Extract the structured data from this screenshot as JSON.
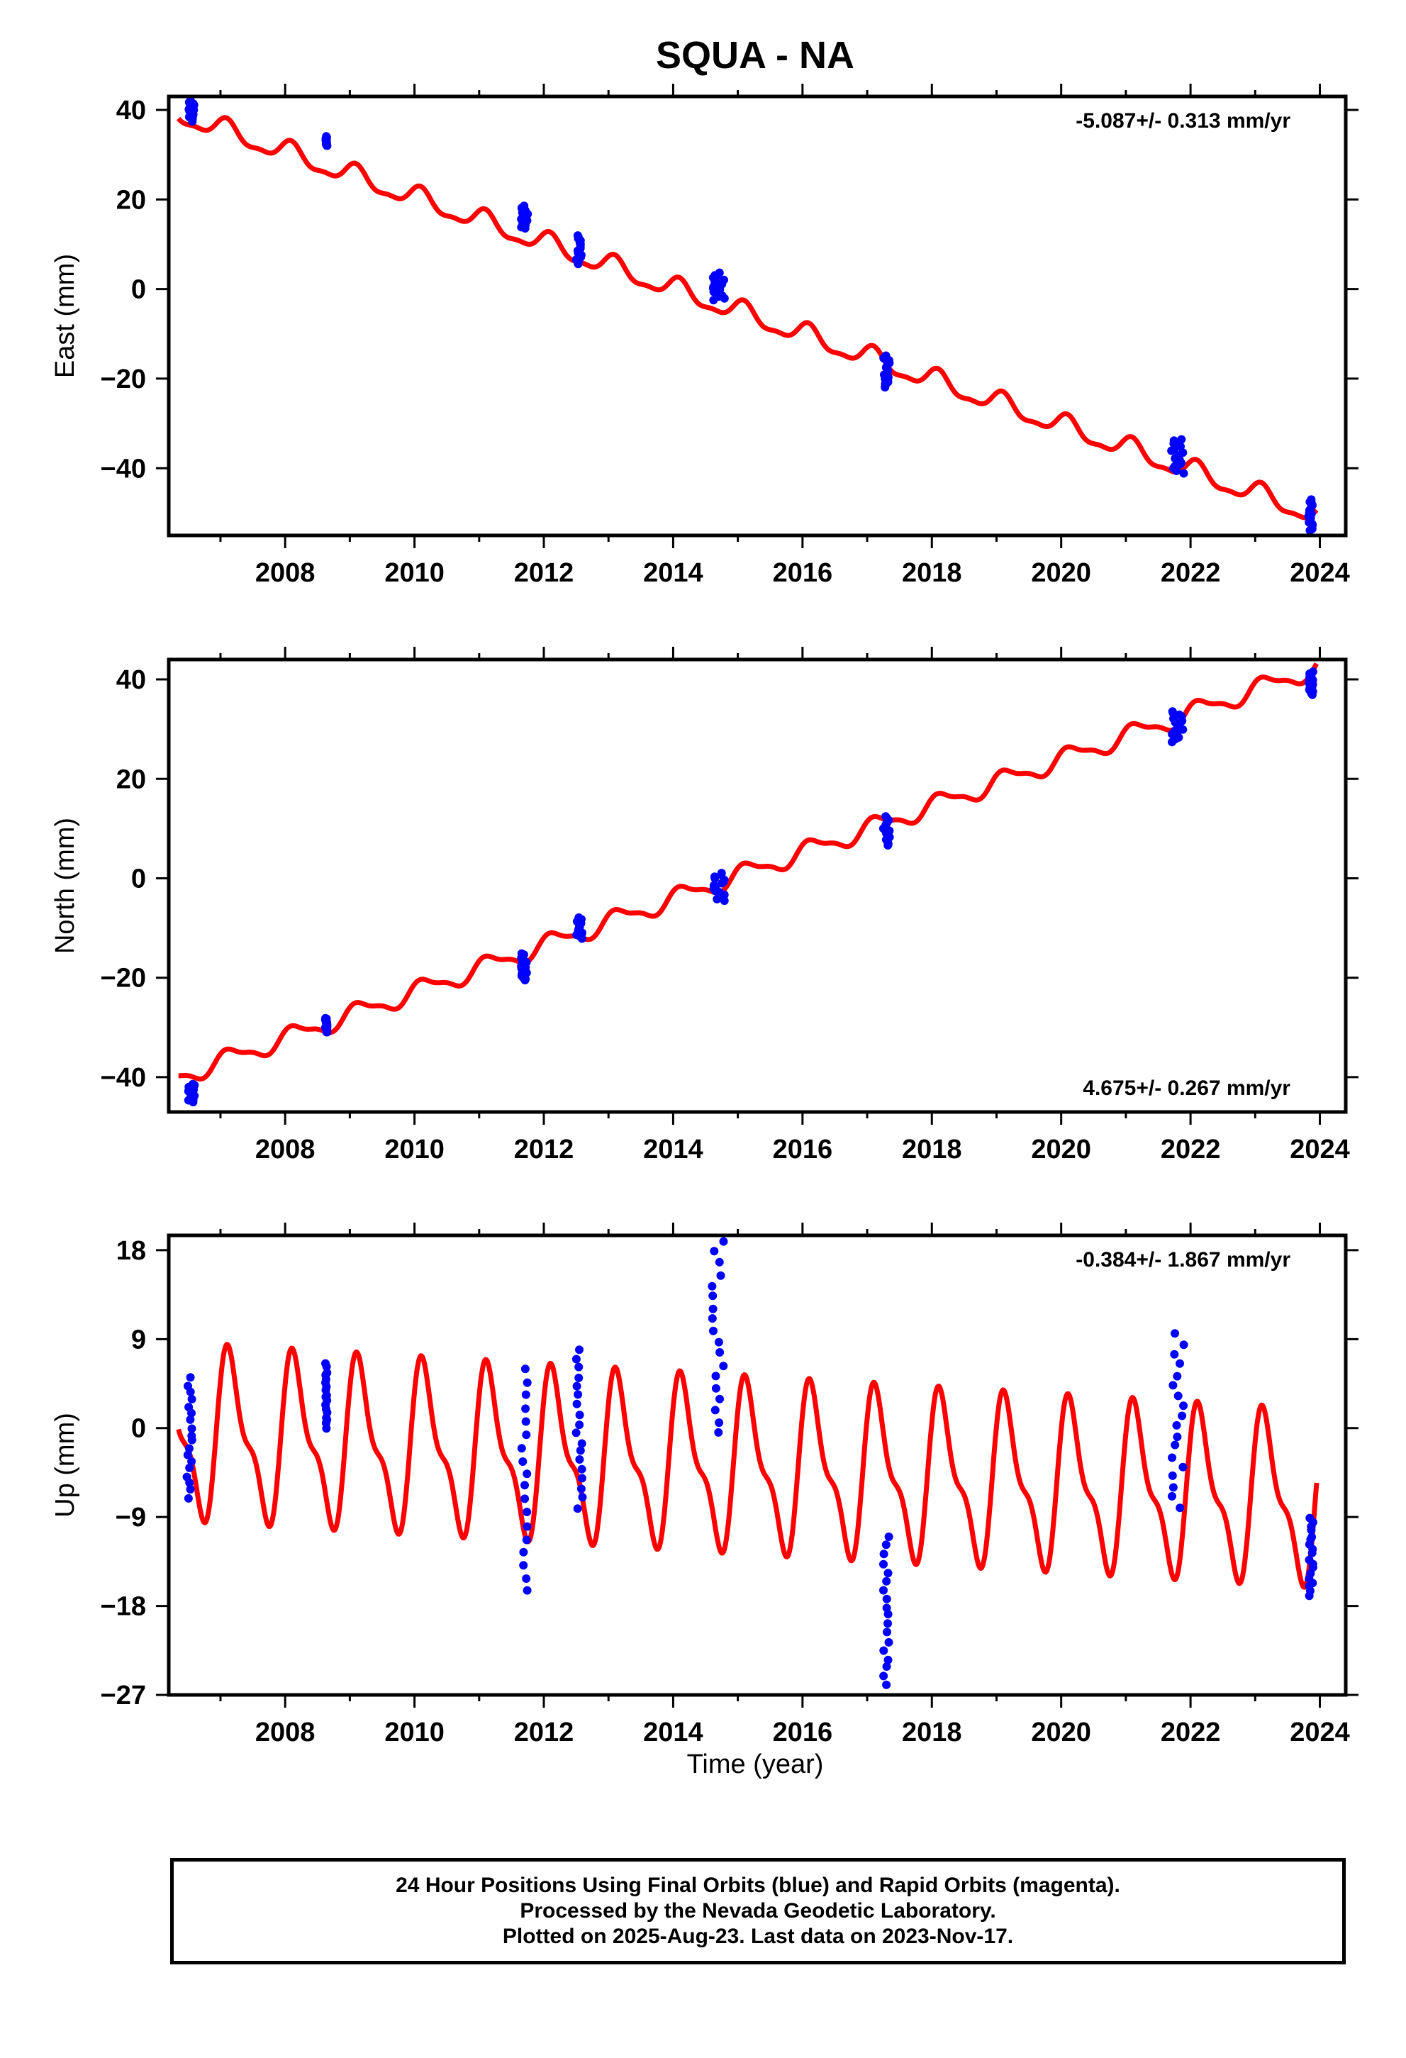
{
  "chart_data": {
    "type": "scatter",
    "title": "SQUA - NA",
    "xlabel": "Time (year)",
    "xlim": [
      2006.2,
      2024.4
    ],
    "x_ticks": [
      2008,
      2010,
      2012,
      2014,
      2016,
      2018,
      2020,
      2022,
      2024
    ],
    "x_tick_labels": [
      "2008",
      "2010",
      "2012",
      "2014",
      "2016",
      "2018",
      "2020",
      "2022",
      "2024"
    ],
    "colors": {
      "data": "#0000ff",
      "model": "#ff0000",
      "axes": "#000000"
    },
    "panels": [
      {
        "component": "East",
        "ylabel": "East (mm)",
        "ylim": [
          -55,
          43
        ],
        "y_ticks": [
          -40,
          -20,
          0,
          20,
          40
        ],
        "y_tick_labels": [
          "−40",
          "−20",
          "0",
          "20",
          "40"
        ],
        "rate_text": "-5.087+/- 0.313 mm/yr",
        "rate_position": "top-right",
        "model": {
          "intercept_2015": -5.0,
          "rate": -5.087,
          "annual_amplitude": 2.2,
          "annual_phase": 1.0,
          "semiannual_amplitude": 0.8,
          "semiannual_phase": 0.4
        },
        "data_clusters": [
          {
            "start": 2006.5,
            "end": 2006.6,
            "y_min": 37.5,
            "y_max": 42
          },
          {
            "start": 2008.62,
            "end": 2008.65,
            "y_min": 32,
            "y_max": 34
          },
          {
            "start": 2011.65,
            "end": 2011.75,
            "y_min": 13.5,
            "y_max": 18.5
          },
          {
            "start": 2012.5,
            "end": 2012.6,
            "y_min": 5.5,
            "y_max": 12
          },
          {
            "start": 2014.6,
            "end": 2014.8,
            "y_min": -2.5,
            "y_max": 3.5
          },
          {
            "start": 2017.25,
            "end": 2017.35,
            "y_min": -22,
            "y_max": -15
          },
          {
            "start": 2021.7,
            "end": 2021.9,
            "y_min": -41,
            "y_max": -33.5
          },
          {
            "start": 2023.82,
            "end": 2023.9,
            "y_min": -54,
            "y_max": -47
          }
        ]
      },
      {
        "component": "North",
        "ylabel": "North (mm)",
        "ylim": [
          -47,
          44
        ],
        "y_ticks": [
          -40,
          -20,
          0,
          20,
          40
        ],
        "y_tick_labels": [
          "−40",
          "−20",
          "0",
          "20",
          "40"
        ],
        "rate_text": "4.675+/- 0.267 mm/yr",
        "rate_position": "bottom-right",
        "model": {
          "intercept_2015": 0.5,
          "rate": 4.675,
          "annual_amplitude": 1.8,
          "annual_phase": 0.6,
          "semiannual_amplitude": 0.6,
          "semiannual_phase": 1.2
        },
        "data_clusters": [
          {
            "start": 2006.5,
            "end": 2006.6,
            "y_min": -45,
            "y_max": -41.5
          },
          {
            "start": 2008.62,
            "end": 2008.65,
            "y_min": -31,
            "y_max": -28
          },
          {
            "start": 2011.65,
            "end": 2011.75,
            "y_min": -20.5,
            "y_max": -15
          },
          {
            "start": 2012.5,
            "end": 2012.6,
            "y_min": -12,
            "y_max": -8
          },
          {
            "start": 2014.6,
            "end": 2014.8,
            "y_min": -4.5,
            "y_max": 1
          },
          {
            "start": 2017.25,
            "end": 2017.35,
            "y_min": 6.5,
            "y_max": 12.5
          },
          {
            "start": 2021.7,
            "end": 2021.9,
            "y_min": 27.5,
            "y_max": 33.5
          },
          {
            "start": 2023.82,
            "end": 2023.9,
            "y_min": 37,
            "y_max": 41.5
          }
        ]
      },
      {
        "component": "Up",
        "ylabel": "Up (mm)",
        "ylim": [
          -27,
          19.5
        ],
        "y_ticks": [
          -27,
          -18,
          -9,
          0,
          9,
          18
        ],
        "y_tick_labels": [
          "−27",
          "−18",
          "−9",
          "0",
          "9",
          "18"
        ],
        "rate_text": "-0.384+/- 1.867 mm/yr",
        "rate_position": "top-right",
        "model": {
          "intercept_2015": -4.0,
          "rate": -0.384,
          "annual_amplitude": 7.5,
          "annual_phase": 0.5,
          "semiannual_amplitude": 3.0,
          "semiannual_phase": 0.8
        },
        "data_clusters": [
          {
            "start": 2006.48,
            "end": 2006.56,
            "y_min": -7,
            "y_max": 5
          },
          {
            "start": 2008.62,
            "end": 2008.65,
            "y_min": 0,
            "y_max": 6.5
          },
          {
            "start": 2011.65,
            "end": 2011.75,
            "y_min": -16.5,
            "y_max": 6
          },
          {
            "start": 2012.5,
            "end": 2012.6,
            "y_min": -8,
            "y_max": 8
          },
          {
            "start": 2014.6,
            "end": 2014.8,
            "y_min": -0.5,
            "y_max": 19
          },
          {
            "start": 2017.25,
            "end": 2017.35,
            "y_min": -26,
            "y_max": -11
          },
          {
            "start": 2021.7,
            "end": 2021.9,
            "y_min": -8,
            "y_max": 9.5
          },
          {
            "start": 2023.82,
            "end": 2023.9,
            "y_min": -17,
            "y_max": -9
          }
        ]
      }
    ]
  },
  "footer": {
    "line1": "24 Hour Positions Using Final Orbits (blue) and Rapid Orbits (magenta).",
    "line2": "Processed by the Nevada Geodetic Laboratory.",
    "line3": "Plotted on 2025-Aug-23. Last data on 2023-Nov-17."
  }
}
